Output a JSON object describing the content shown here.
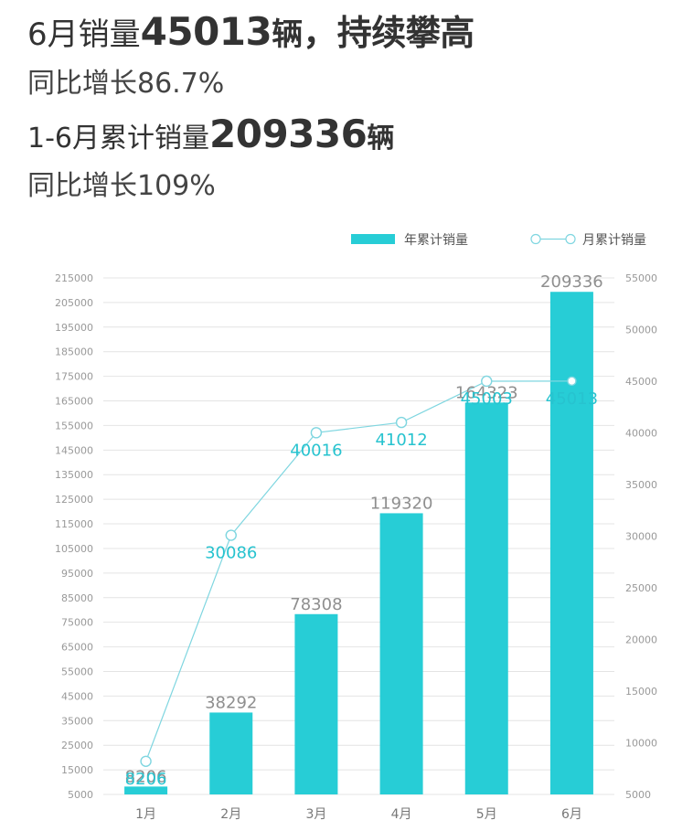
{
  "headline": {
    "l1_prefix": "6月销量",
    "l1_value": "45013",
    "l1_unit": "辆",
    "l1_suffix": "，持续攀高",
    "l2": "同比增长86.7%",
    "l3_prefix": "1-6月累计销量",
    "l3_value": "209336",
    "l3_unit": "辆",
    "l4": "同比增长109%"
  },
  "chart_data": {
    "type": "bar+line",
    "categories": [
      "1月",
      "2月",
      "3月",
      "4月",
      "5月",
      "6月"
    ],
    "series": [
      {
        "name": "年累计销量",
        "type": "bar",
        "axis": "left",
        "values": [
          8206,
          38292,
          78308,
          119320,
          164323,
          209336
        ]
      },
      {
        "name": "月累计销量",
        "type": "line",
        "axis": "right",
        "values": [
          8206,
          30086,
          40016,
          41012,
          45003,
          45013
        ]
      }
    ],
    "left_axis": {
      "min": 5000,
      "max": 215000,
      "step": 10000
    },
    "right_axis": {
      "min": 5000,
      "max": 55000,
      "step": 5000
    },
    "legend_position": "top-right",
    "grid": true,
    "colors": {
      "bar": "#27cdd6",
      "line": "#7fd6e0",
      "line_label": "#27c3cf",
      "bar_label": "#8f8f8f"
    }
  }
}
